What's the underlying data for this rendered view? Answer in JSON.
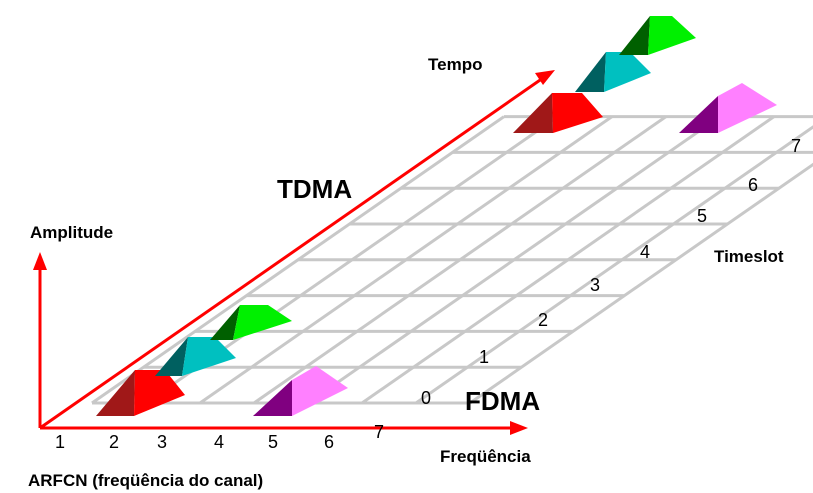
{
  "labels": {
    "tempo": "Tempo",
    "tdma": "TDMA",
    "amplitude": "Amplitude",
    "timeslot": "Timeslot",
    "fdma": "FDMA",
    "frequencia": "Freqüência",
    "arfcn": "ARFCN (freqüência do canal)"
  },
  "arfcn_numbers": [
    "1",
    "2",
    "3",
    "4",
    "5",
    "6",
    "7"
  ],
  "timeslot_numbers": [
    "0",
    "1",
    "2",
    "3",
    "4",
    "5",
    "6",
    "7"
  ],
  "colors": {
    "axis": "#ff0000",
    "grid": "#c8c8c8",
    "red_face": "#ff0000",
    "red_shade": "#a01818",
    "cyan_face": "#00c0c0",
    "cyan_shade": "#006060",
    "green_face": "#00f000",
    "green_shade": "#006000",
    "pink_face": "#ff80ff",
    "purple_shade": "#800080"
  }
}
